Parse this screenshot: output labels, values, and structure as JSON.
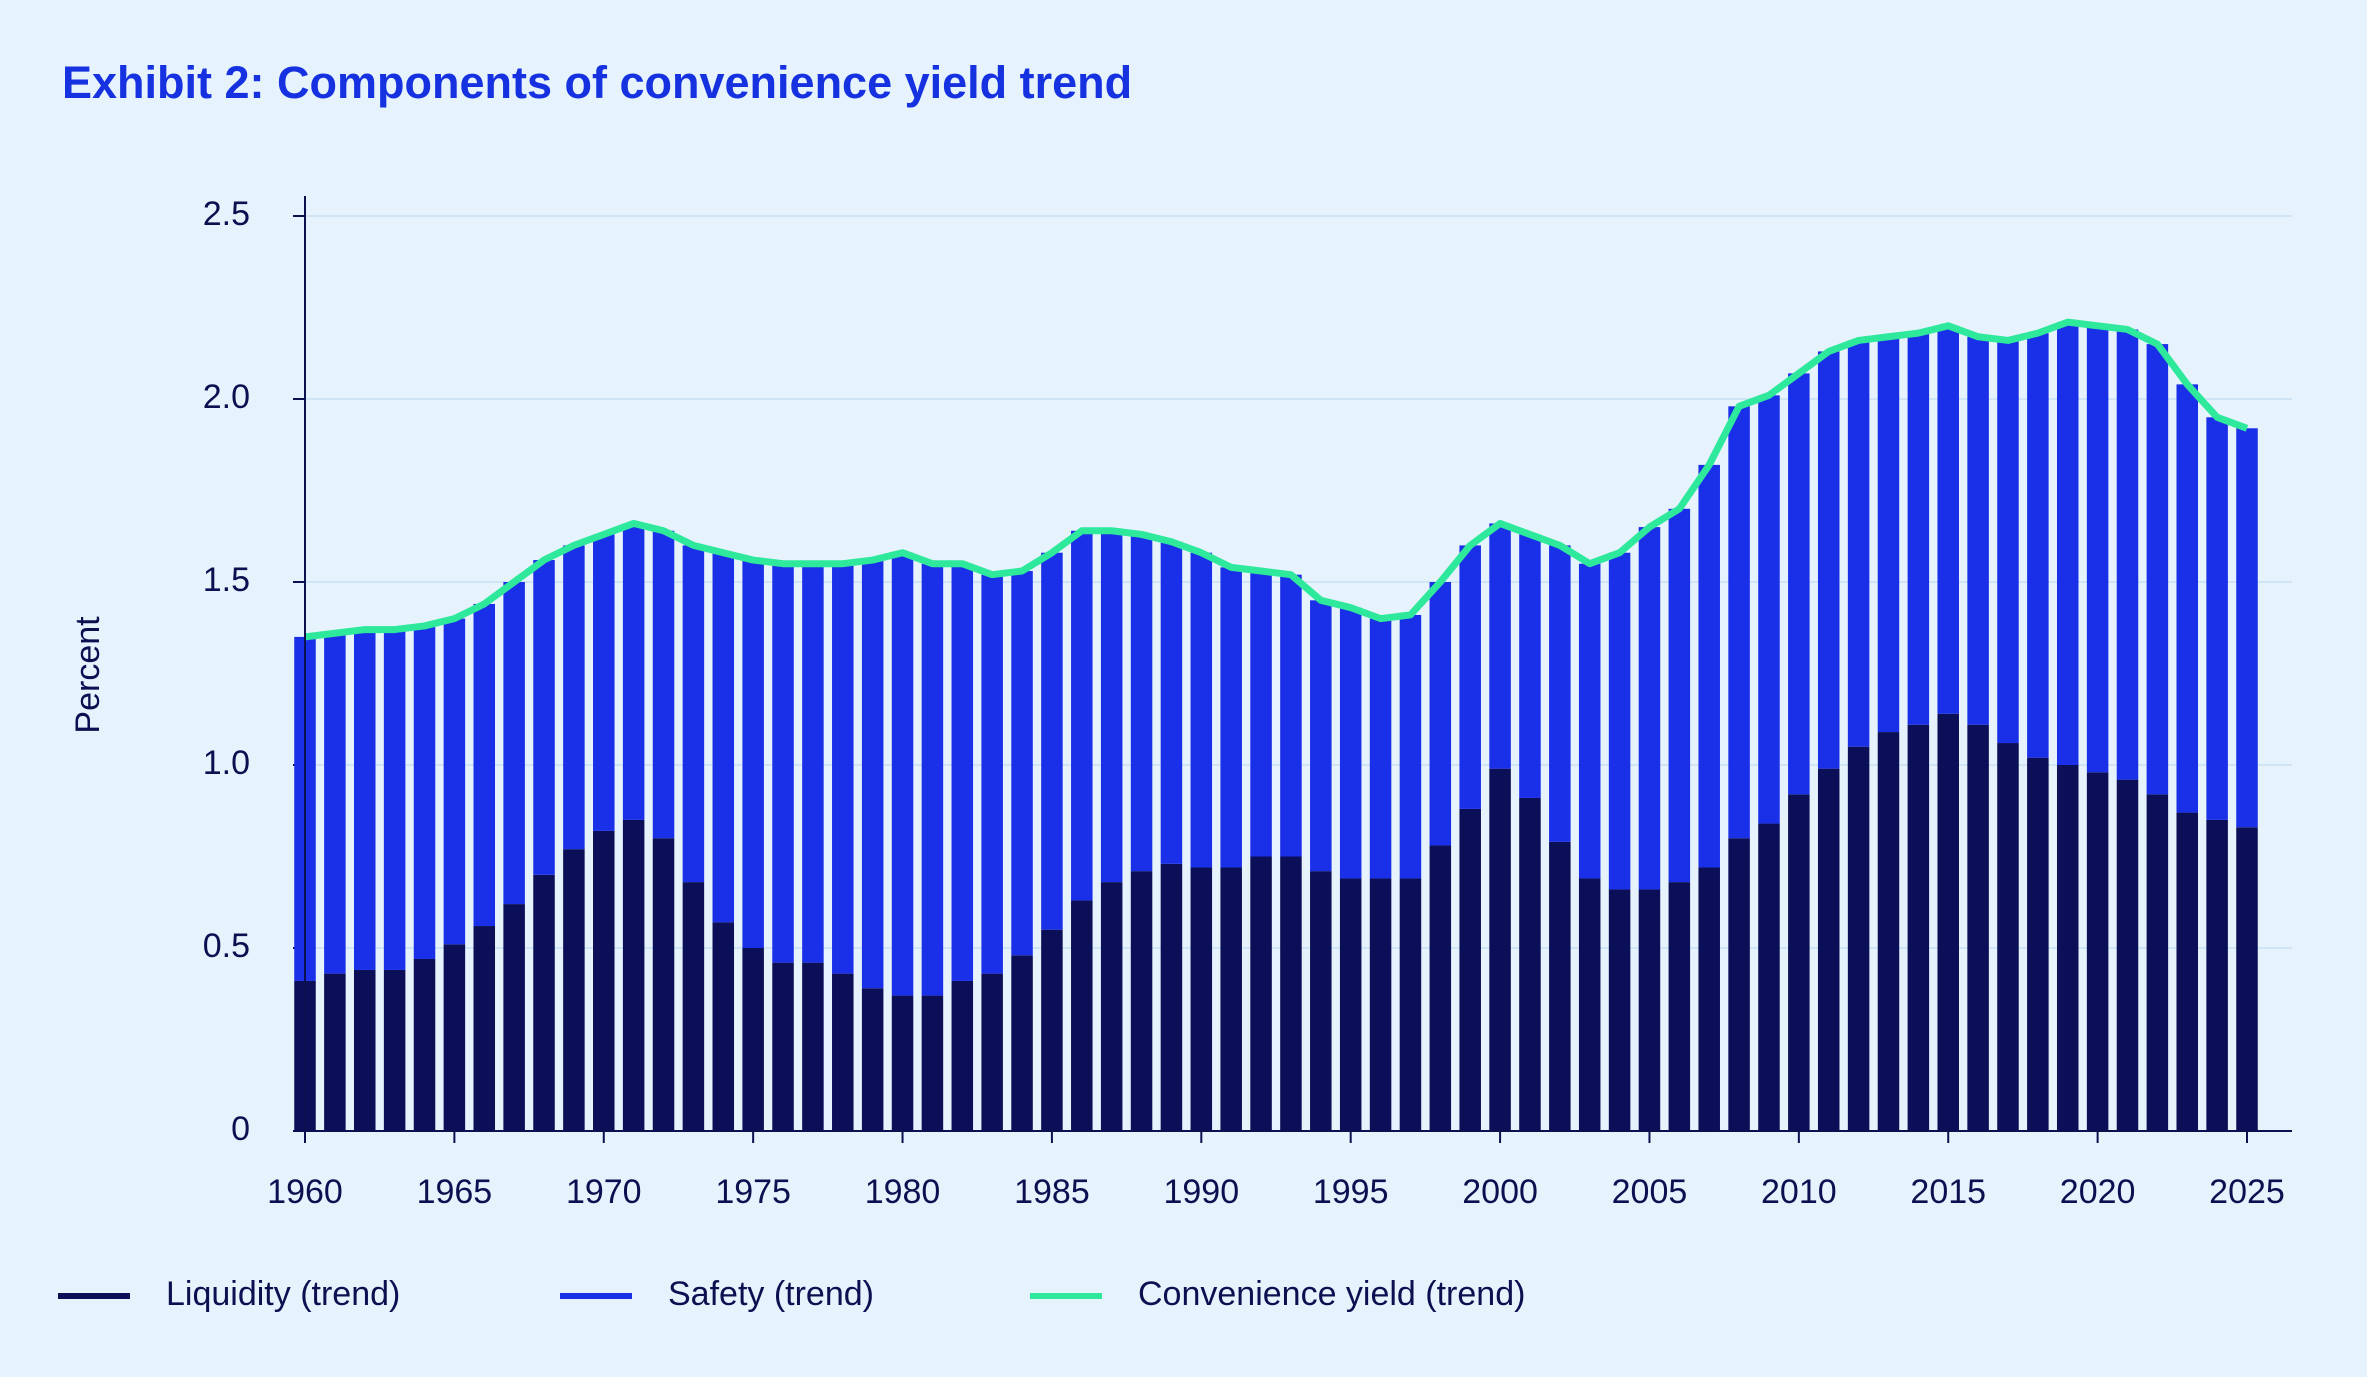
{
  "chart_data": {
    "type": "bar",
    "stacked": true,
    "title": "Exhibit 2: Components of convenience yield trend",
    "ylabel": "Percent",
    "x": [
      1960,
      1961,
      1962,
      1963,
      1964,
      1965,
      1966,
      1967,
      1968,
      1969,
      1970,
      1971,
      1972,
      1973,
      1974,
      1975,
      1976,
      1977,
      1978,
      1979,
      1980,
      1981,
      1982,
      1983,
      1984,
      1985,
      1986,
      1987,
      1988,
      1989,
      1990,
      1991,
      1992,
      1993,
      1994,
      1995,
      1996,
      1997,
      1998,
      1999,
      2000,
      2001,
      2002,
      2003,
      2004,
      2005,
      2006,
      2007,
      2008,
      2009,
      2010,
      2011,
      2012,
      2013,
      2014,
      2015,
      2016,
      2017,
      2018,
      2019,
      2020,
      2021,
      2022,
      2023,
      2024,
      2025
    ],
    "series": [
      {
        "name": "Liquidity (trend)",
        "color": "#0b0f57",
        "values": [
          0.41,
          0.43,
          0.44,
          0.44,
          0.47,
          0.51,
          0.56,
          0.62,
          0.7,
          0.77,
          0.82,
          0.85,
          0.8,
          0.68,
          0.57,
          0.5,
          0.46,
          0.46,
          0.43,
          0.39,
          0.37,
          0.37,
          0.41,
          0.43,
          0.48,
          0.55,
          0.63,
          0.68,
          0.71,
          0.73,
          0.72,
          0.72,
          0.75,
          0.75,
          0.71,
          0.69,
          0.69,
          0.69,
          0.78,
          0.88,
          0.99,
          0.91,
          0.79,
          0.69,
          0.66,
          0.66,
          0.68,
          0.72,
          0.8,
          0.84,
          0.92,
          0.99,
          1.05,
          1.09,
          1.11,
          1.14,
          1.11,
          1.06,
          1.02,
          1.0,
          0.98,
          0.96,
          0.92,
          0.87,
          0.85,
          0.83
        ]
      },
      {
        "name": "Safety (trend)",
        "color": "#1a2fe8",
        "values": [
          0.94,
          0.93,
          0.93,
          0.93,
          0.91,
          0.89,
          0.88,
          0.88,
          0.86,
          0.83,
          0.81,
          0.81,
          0.84,
          0.92,
          1.01,
          1.06,
          1.09,
          1.09,
          1.12,
          1.17,
          1.21,
          1.18,
          1.14,
          1.09,
          1.05,
          1.03,
          1.01,
          0.96,
          0.92,
          0.88,
          0.86,
          0.82,
          0.78,
          0.77,
          0.74,
          0.74,
          0.71,
          0.72,
          0.72,
          0.72,
          0.67,
          0.72,
          0.81,
          0.86,
          0.92,
          0.99,
          1.02,
          1.1,
          1.18,
          1.17,
          1.15,
          1.14,
          1.11,
          1.08,
          1.07,
          1.06,
          1.06,
          1.1,
          1.16,
          1.21,
          1.22,
          1.23,
          1.23,
          1.17,
          1.1,
          1.09
        ]
      },
      {
        "name": "Convenience yield (trend)",
        "type": "line",
        "color": "#2ee89b",
        "values": [
          1.35,
          1.36,
          1.37,
          1.37,
          1.38,
          1.4,
          1.44,
          1.5,
          1.56,
          1.6,
          1.63,
          1.66,
          1.64,
          1.6,
          1.58,
          1.56,
          1.55,
          1.55,
          1.55,
          1.56,
          1.58,
          1.55,
          1.55,
          1.52,
          1.53,
          1.58,
          1.64,
          1.64,
          1.63,
          1.61,
          1.58,
          1.54,
          1.53,
          1.52,
          1.45,
          1.43,
          1.4,
          1.41,
          1.5,
          1.6,
          1.66,
          1.63,
          1.6,
          1.55,
          1.58,
          1.65,
          1.7,
          1.82,
          1.98,
          2.01,
          2.07,
          2.13,
          2.16,
          2.17,
          2.18,
          2.2,
          2.17,
          2.16,
          2.18,
          2.21,
          2.2,
          2.19,
          2.15,
          2.04,
          1.95,
          1.92
        ]
      }
    ],
    "xlim": [
      1960,
      2025
    ],
    "xticks": [
      1960,
      1965,
      1970,
      1975,
      1980,
      1985,
      1990,
      1995,
      2000,
      2005,
      2010,
      2015,
      2020,
      2025
    ],
    "ylim": [
      0,
      2.5
    ],
    "yticks": [
      0,
      {
        "value": 0.5,
        "label": "0.5"
      },
      {
        "value": 1,
        "label": "1.0"
      },
      {
        "value": 1.5,
        "label": "1.5"
      },
      {
        "value": 2,
        "label": "2.0"
      },
      {
        "value": 2.5,
        "label": "2.5"
      }
    ],
    "grid": true,
    "legend": "bottom"
  }
}
